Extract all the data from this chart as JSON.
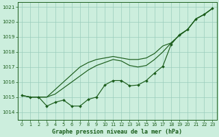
{
  "title": "Graphe pression niveau de la mer (hPa)",
  "background_color": "#cceedd",
  "grid_color": "#99ccbb",
  "line_color": "#1a5c1a",
  "xlim": [
    -0.5,
    23.5
  ],
  "ylim": [
    1013.5,
    1021.3
  ],
  "yticks": [
    1014,
    1015,
    1016,
    1017,
    1018,
    1019,
    1020,
    1021
  ],
  "xticks": [
    0,
    1,
    2,
    3,
    4,
    5,
    6,
    7,
    8,
    9,
    10,
    11,
    12,
    13,
    14,
    15,
    16,
    17,
    18,
    19,
    20,
    21,
    22,
    23
  ],
  "line_upper": [
    1015.1,
    1015.0,
    1015.0,
    1015.0,
    1015.5,
    1016.0,
    1016.5,
    1017.0,
    1017.3,
    1017.5,
    1017.6,
    1017.7,
    1017.6,
    1017.5,
    1017.5,
    1017.6,
    1017.9,
    1018.4,
    1018.6,
    1019.1,
    1019.5,
    1020.2,
    1020.5,
    1020.9
  ],
  "line_mid": [
    1015.1,
    1015.0,
    1015.0,
    1015.0,
    1015.2,
    1015.6,
    1016.0,
    1016.4,
    1016.8,
    1017.1,
    1017.3,
    1017.5,
    1017.4,
    1017.1,
    1017.0,
    1017.1,
    1017.5,
    1018.0,
    1018.6,
    1019.1,
    1019.5,
    1020.2,
    1020.5,
    1020.9
  ],
  "line_lower": [
    1015.1,
    1015.0,
    1015.0,
    1014.4,
    1014.65,
    1014.8,
    1014.4,
    1014.4,
    1014.85,
    1015.0,
    1015.8,
    1016.1,
    1016.1,
    1015.75,
    1015.8,
    1016.1,
    1016.6,
    1017.05,
    1018.5,
    1019.15,
    1019.5,
    1020.2,
    1020.5,
    1020.9
  ]
}
